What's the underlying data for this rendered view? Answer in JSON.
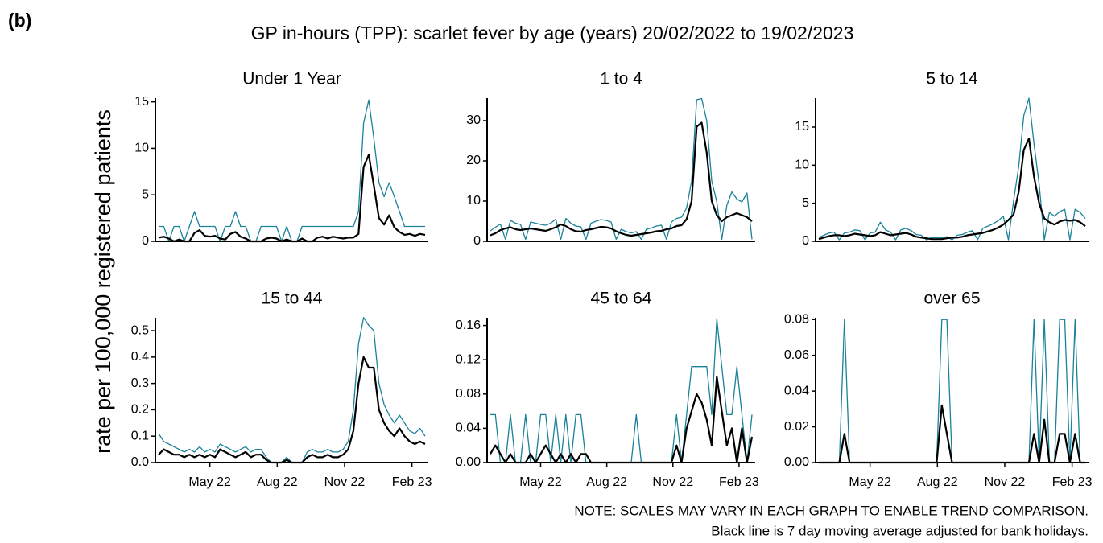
{
  "panel_label": "(b)",
  "title": "GP in-hours (TPP): scarlet fever by age (years) 20/02/2022 to 19/02/2023",
  "y_label": "rate per 100,000 registered patients",
  "notes": [
    "NOTE: SCALES MAY VARY IN EACH GRAPH TO ENABLE TREND COMPARISON.",
    "Black line is 7 day moving average adjusted for bank holidays."
  ],
  "chart_data": [
    {
      "type": "line",
      "title": "Under 1 Year",
      "x": [
        0,
        7,
        14,
        21,
        28,
        35,
        42,
        49,
        56,
        63,
        70,
        77,
        84,
        91,
        98,
        105,
        112,
        119,
        126,
        133,
        140,
        147,
        154,
        161,
        168,
        175,
        182,
        189,
        196,
        203,
        210,
        217,
        224,
        231,
        238,
        245,
        252,
        259,
        266,
        273,
        280,
        287,
        294,
        301,
        308,
        315,
        322,
        329,
        336,
        343,
        350,
        357,
        364
      ],
      "xlim": [
        0,
        364
      ],
      "ylim": [
        0,
        15.4
      ],
      "yticks": [
        0,
        5,
        10,
        15
      ],
      "series": [
        {
          "color": "#1a8299",
          "values": [
            1.6,
            1.6,
            0,
            1.6,
            1.6,
            0,
            1.6,
            3.2,
            1.6,
            1.6,
            1.6,
            1.6,
            0,
            1.6,
            1.6,
            3.2,
            1.6,
            1.6,
            0,
            0,
            1.6,
            1.6,
            1.6,
            1.6,
            0,
            1.6,
            0,
            0,
            1.6,
            1.6,
            1.6,
            1.6,
            1.6,
            1.6,
            1.6,
            1.6,
            1.6,
            1.6,
            1.6,
            3.2,
            12.7,
            15.2,
            11.1,
            6.3,
            4.8,
            6.3,
            4.8,
            3.2,
            1.6,
            1.6,
            1.6,
            1.6,
            1.6
          ]
        },
        {
          "color": "#000000",
          "values": [
            0.4,
            0.5,
            0.3,
            0.0,
            0.2,
            0.0,
            0.0,
            0.9,
            1.2,
            0.6,
            0.5,
            0.6,
            0.3,
            0.2,
            0.8,
            1.0,
            0.5,
            0.3,
            0.0,
            0.0,
            0.0,
            0.3,
            0.4,
            0.3,
            0.0,
            0.2,
            0.0,
            0.0,
            0.3,
            0.0,
            0.0,
            0.4,
            0.5,
            0.3,
            0.5,
            0.4,
            0.3,
            0.4,
            0.4,
            0.8,
            8.0,
            9.3,
            6.0,
            2.5,
            1.8,
            2.8,
            1.5,
            1.0,
            0.7,
            0.8,
            0.6,
            0.8,
            0.7
          ]
        }
      ]
    },
    {
      "type": "line",
      "title": "1 to 4",
      "x": [
        0,
        7,
        14,
        21,
        28,
        35,
        42,
        49,
        56,
        63,
        70,
        77,
        84,
        91,
        98,
        105,
        112,
        119,
        126,
        133,
        140,
        147,
        154,
        161,
        168,
        175,
        182,
        189,
        196,
        203,
        210,
        217,
        224,
        231,
        238,
        245,
        252,
        259,
        266,
        273,
        280,
        287,
        294,
        301,
        308,
        315,
        322,
        329,
        336,
        343,
        350,
        357,
        364
      ],
      "xlim": [
        0,
        364
      ],
      "ylim": [
        0,
        35.6
      ],
      "yticks": [
        0,
        10,
        20,
        30
      ],
      "series": [
        {
          "color": "#1a8299",
          "values": [
            2.6,
            3.5,
            4.3,
            0.5,
            5.2,
            4.5,
            4.2,
            0.5,
            4.8,
            4.5,
            4.2,
            4.0,
            4.5,
            5.5,
            0.5,
            5.7,
            4.5,
            3.8,
            3.6,
            0.5,
            4.5,
            5.0,
            5.4,
            5.2,
            4.8,
            0.5,
            3.0,
            2.4,
            2.1,
            2.4,
            0.5,
            3.0,
            3.3,
            3.8,
            4.0,
            0.5,
            4.8,
            5.7,
            6.0,
            8.3,
            15.0,
            35.2,
            35.5,
            30.0,
            15.0,
            9.8,
            0.5,
            9.0,
            12.3,
            10.5,
            9.8,
            12.0,
            0.5
          ]
        },
        {
          "color": "#000000",
          "values": [
            1.5,
            2.0,
            2.8,
            3.2,
            3.5,
            3.0,
            2.8,
            3.0,
            3.2,
            3.0,
            2.8,
            2.6,
            3.0,
            3.5,
            4.2,
            3.8,
            3.0,
            2.5,
            2.4,
            2.8,
            3.0,
            3.3,
            3.6,
            3.5,
            3.2,
            2.5,
            2.0,
            1.6,
            1.4,
            1.6,
            1.8,
            2.0,
            2.2,
            2.5,
            2.6,
            3.0,
            3.2,
            3.8,
            4.0,
            5.5,
            10.0,
            28.5,
            29.5,
            22.0,
            10.0,
            6.5,
            5.0,
            6.0,
            6.5,
            7.0,
            6.5,
            6.0,
            5.0
          ]
        }
      ]
    },
    {
      "type": "line",
      "title": "5 to 14",
      "x": [
        0,
        7,
        14,
        21,
        28,
        35,
        42,
        49,
        56,
        63,
        70,
        77,
        84,
        91,
        98,
        105,
        112,
        119,
        126,
        133,
        140,
        147,
        154,
        161,
        168,
        175,
        182,
        189,
        196,
        203,
        210,
        217,
        224,
        231,
        238,
        245,
        252,
        259,
        266,
        273,
        280,
        287,
        294,
        301,
        308,
        315,
        322,
        329,
        336,
        343,
        350,
        357,
        364
      ],
      "xlim": [
        0,
        364
      ],
      "ylim": [
        0,
        18.8
      ],
      "yticks": [
        0,
        5,
        10,
        15
      ],
      "series": [
        {
          "color": "#1a8299",
          "values": [
            0.5,
            0.8,
            1.1,
            1.2,
            0.2,
            1.1,
            1.2,
            1.5,
            1.4,
            0.2,
            1.1,
            1.2,
            2.5,
            1.5,
            1.2,
            0.2,
            1.5,
            1.7,
            1.4,
            0.9,
            0.8,
            0.2,
            0.5,
            0.5,
            0.5,
            0.6,
            0.2,
            0.8,
            0.9,
            1.2,
            1.4,
            0.2,
            1.7,
            2.0,
            2.3,
            2.7,
            3.3,
            0.2,
            5.3,
            9.8,
            16.5,
            18.8,
            12.8,
            7.5,
            0.2,
            3.8,
            3.3,
            3.9,
            4.2,
            0.2,
            4.2,
            3.8,
            3.0
          ]
        },
        {
          "color": "#000000",
          "values": [
            0.3,
            0.5,
            0.7,
            0.8,
            0.8,
            0.7,
            0.8,
            1.0,
            0.9,
            0.8,
            0.7,
            0.8,
            1.2,
            1.0,
            0.8,
            0.9,
            1.0,
            1.1,
            0.9,
            0.6,
            0.5,
            0.4,
            0.3,
            0.3,
            0.3,
            0.4,
            0.5,
            0.5,
            0.6,
            0.8,
            0.9,
            1.0,
            1.1,
            1.3,
            1.5,
            1.8,
            2.2,
            2.8,
            3.5,
            6.5,
            12.0,
            13.5,
            8.5,
            5.0,
            3.0,
            2.5,
            2.2,
            2.6,
            2.8,
            2.7,
            2.8,
            2.5,
            2.0
          ]
        }
      ]
    },
    {
      "type": "line",
      "title": "15 to 44",
      "x": [
        0,
        7,
        14,
        21,
        28,
        35,
        42,
        49,
        56,
        63,
        70,
        77,
        84,
        91,
        98,
        105,
        112,
        119,
        126,
        133,
        140,
        147,
        154,
        161,
        168,
        175,
        182,
        189,
        196,
        203,
        210,
        217,
        224,
        231,
        238,
        245,
        252,
        259,
        266,
        273,
        280,
        287,
        294,
        301,
        308,
        315,
        322,
        329,
        336,
        343,
        350,
        357,
        364
      ],
      "xlim": [
        0,
        364
      ],
      "ylim": [
        0,
        0.549
      ],
      "yticks": [
        {
          "value": 0,
          "label": "0.0"
        },
        0.1,
        0.2,
        0.3,
        0.4,
        0.5
      ],
      "xticks": [
        {
          "value": 70,
          "label": "May 22"
        },
        {
          "value": 162,
          "label": "Aug 22"
        },
        {
          "value": 254,
          "label": "Nov 22"
        },
        {
          "value": 346,
          "label": "Feb 23"
        }
      ],
      "series": [
        {
          "color": "#1a8299",
          "values": [
            0.11,
            0.08,
            0.07,
            0.06,
            0.05,
            0.04,
            0.05,
            0.04,
            0.06,
            0.04,
            0.05,
            0.04,
            0.07,
            0.06,
            0.05,
            0.04,
            0.05,
            0.06,
            0.04,
            0.05,
            0.05,
            0.02,
            0.0,
            0.0,
            0.0,
            0.02,
            0.0,
            0.0,
            0.0,
            0.04,
            0.05,
            0.04,
            0.04,
            0.05,
            0.04,
            0.04,
            0.05,
            0.08,
            0.2,
            0.45,
            0.55,
            0.52,
            0.5,
            0.3,
            0.22,
            0.18,
            0.15,
            0.18,
            0.15,
            0.12,
            0.11,
            0.13,
            0.1
          ]
        },
        {
          "color": "#000000",
          "values": [
            0.03,
            0.05,
            0.04,
            0.03,
            0.03,
            0.02,
            0.03,
            0.02,
            0.03,
            0.02,
            0.03,
            0.02,
            0.05,
            0.04,
            0.03,
            0.02,
            0.03,
            0.04,
            0.02,
            0.03,
            0.03,
            0.01,
            0.0,
            0.0,
            0.0,
            0.01,
            0.0,
            0.0,
            0.0,
            0.02,
            0.03,
            0.02,
            0.02,
            0.03,
            0.02,
            0.02,
            0.03,
            0.05,
            0.12,
            0.3,
            0.4,
            0.36,
            0.36,
            0.2,
            0.15,
            0.12,
            0.1,
            0.13,
            0.1,
            0.08,
            0.07,
            0.08,
            0.07
          ]
        }
      ]
    },
    {
      "type": "line",
      "title": "45 to 64",
      "x": [
        0,
        7,
        14,
        21,
        28,
        35,
        42,
        49,
        56,
        63,
        70,
        77,
        84,
        91,
        98,
        105,
        112,
        119,
        126,
        133,
        140,
        147,
        154,
        161,
        168,
        175,
        182,
        189,
        196,
        203,
        210,
        217,
        224,
        231,
        238,
        245,
        252,
        259,
        266,
        273,
        280,
        287,
        294,
        301,
        308,
        315,
        322,
        329,
        336,
        343,
        350,
        357,
        364
      ],
      "xlim": [
        0,
        364
      ],
      "ylim": [
        0,
        0.169
      ],
      "yticks": [
        {
          "value": 0,
          "label": "0.00"
        },
        0.04,
        0.08,
        0.12,
        0.16
      ],
      "xticks": [
        {
          "value": 70,
          "label": "May 22"
        },
        {
          "value": 162,
          "label": "Aug 22"
        },
        {
          "value": 254,
          "label": "Nov 22"
        },
        {
          "value": 346,
          "label": "Feb 23"
        }
      ],
      "series": [
        {
          "color": "#1a8299",
          "values": [
            0.056,
            0.056,
            0,
            0,
            0.056,
            0,
            0,
            0.056,
            0,
            0,
            0.056,
            0.056,
            0,
            0.056,
            0,
            0.056,
            0,
            0.056,
            0.056,
            0,
            0,
            0,
            0,
            0,
            0,
            0,
            0,
            0,
            0,
            0.056,
            0,
            0,
            0,
            0,
            0,
            0,
            0,
            0.056,
            0,
            0.056,
            0.112,
            0.112,
            0.112,
            0.112,
            0.056,
            0.168,
            0.112,
            0.056,
            0.056,
            0.112,
            0.056,
            0,
            0.056
          ]
        },
        {
          "color": "#000000",
          "values": [
            0.01,
            0.02,
            0.01,
            0,
            0.01,
            0,
            0,
            0,
            0.01,
            0,
            0.01,
            0.02,
            0.01,
            0,
            0.01,
            0,
            0.01,
            0,
            0.01,
            0.01,
            0,
            0,
            0,
            0,
            0,
            0,
            0,
            0,
            0,
            0,
            0,
            0,
            0,
            0,
            0,
            0,
            0,
            0.02,
            0,
            0.04,
            0.06,
            0.08,
            0.07,
            0.05,
            0.02,
            0.1,
            0.06,
            0.02,
            0.04,
            0,
            0.04,
            0,
            0.03
          ]
        }
      ]
    },
    {
      "type": "line",
      "title": "over 65",
      "x": [
        0,
        7,
        14,
        21,
        28,
        35,
        42,
        49,
        56,
        63,
        70,
        77,
        84,
        91,
        98,
        105,
        112,
        119,
        126,
        133,
        140,
        147,
        154,
        161,
        168,
        175,
        182,
        189,
        196,
        203,
        210,
        217,
        224,
        231,
        238,
        245,
        252,
        259,
        266,
        273,
        280,
        287,
        294,
        301,
        308,
        315,
        322,
        329,
        336,
        343,
        350,
        357,
        364
      ],
      "xlim": [
        0,
        364
      ],
      "ylim": [
        0,
        0.081
      ],
      "yticks": [
        {
          "value": 0,
          "label": "0.00"
        },
        0.02,
        0.04,
        0.06,
        0.08
      ],
      "xticks": [
        {
          "value": 70,
          "label": "May 22"
        },
        {
          "value": 162,
          "label": "Aug 22"
        },
        {
          "value": 254,
          "label": "Nov 22"
        },
        {
          "value": 346,
          "label": "Feb 23"
        }
      ],
      "series": [
        {
          "color": "#1a8299",
          "values": [
            0,
            0,
            0,
            0,
            0,
            0.08,
            0,
            0,
            0,
            0,
            0,
            0,
            0,
            0,
            0,
            0,
            0,
            0,
            0,
            0,
            0,
            0,
            0,
            0,
            0.08,
            0.08,
            0,
            0,
            0,
            0,
            0,
            0,
            0,
            0,
            0,
            0,
            0,
            0,
            0,
            0,
            0,
            0,
            0.08,
            0,
            0.08,
            0,
            0,
            0.08,
            0.08,
            0,
            0.08,
            0,
            0
          ]
        },
        {
          "color": "#000000",
          "values": [
            0,
            0,
            0,
            0,
            0,
            0.016,
            0,
            0,
            0,
            0,
            0,
            0,
            0,
            0,
            0,
            0,
            0,
            0,
            0,
            0,
            0,
            0,
            0,
            0,
            0.032,
            0.016,
            0,
            0,
            0,
            0,
            0,
            0,
            0,
            0,
            0,
            0,
            0,
            0,
            0,
            0,
            0,
            0,
            0.016,
            0,
            0.024,
            0,
            0,
            0.016,
            0.016,
            0,
            0.016,
            0,
            0
          ]
        }
      ]
    }
  ]
}
